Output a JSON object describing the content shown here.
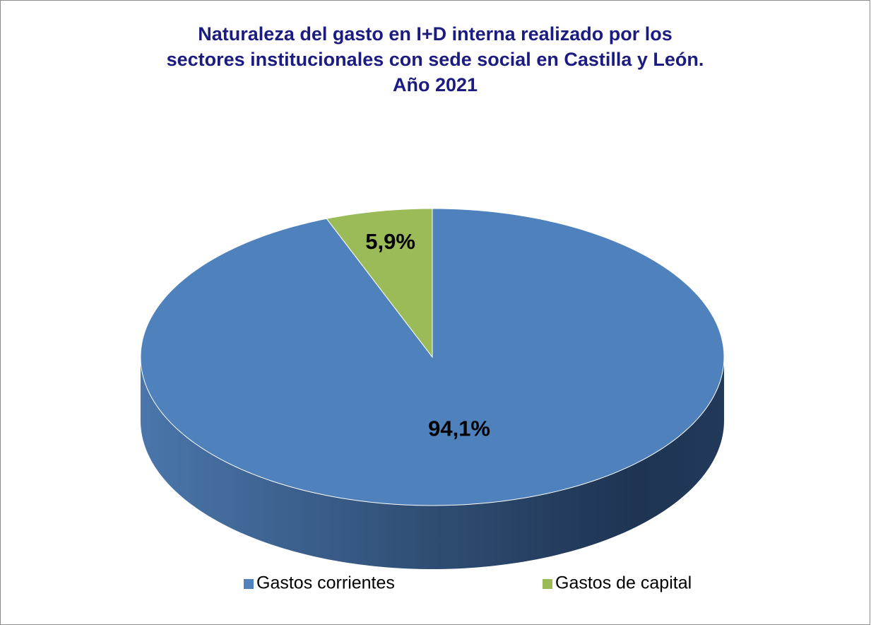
{
  "chart_data": {
    "type": "pie",
    "title": [
      "Naturaleza del gasto en I+D interna realizado por los",
      "sectores institucionales con sede social en Castilla y León.",
      "Año 2021"
    ],
    "categories": [
      "Gastos corrientes",
      "Gastos de capital"
    ],
    "values": [
      94.1,
      5.9
    ],
    "value_labels": [
      "94,1%",
      "5,9%"
    ],
    "colors": [
      "#4f81bd",
      "#9bbb59"
    ],
    "legend": "bottom"
  }
}
